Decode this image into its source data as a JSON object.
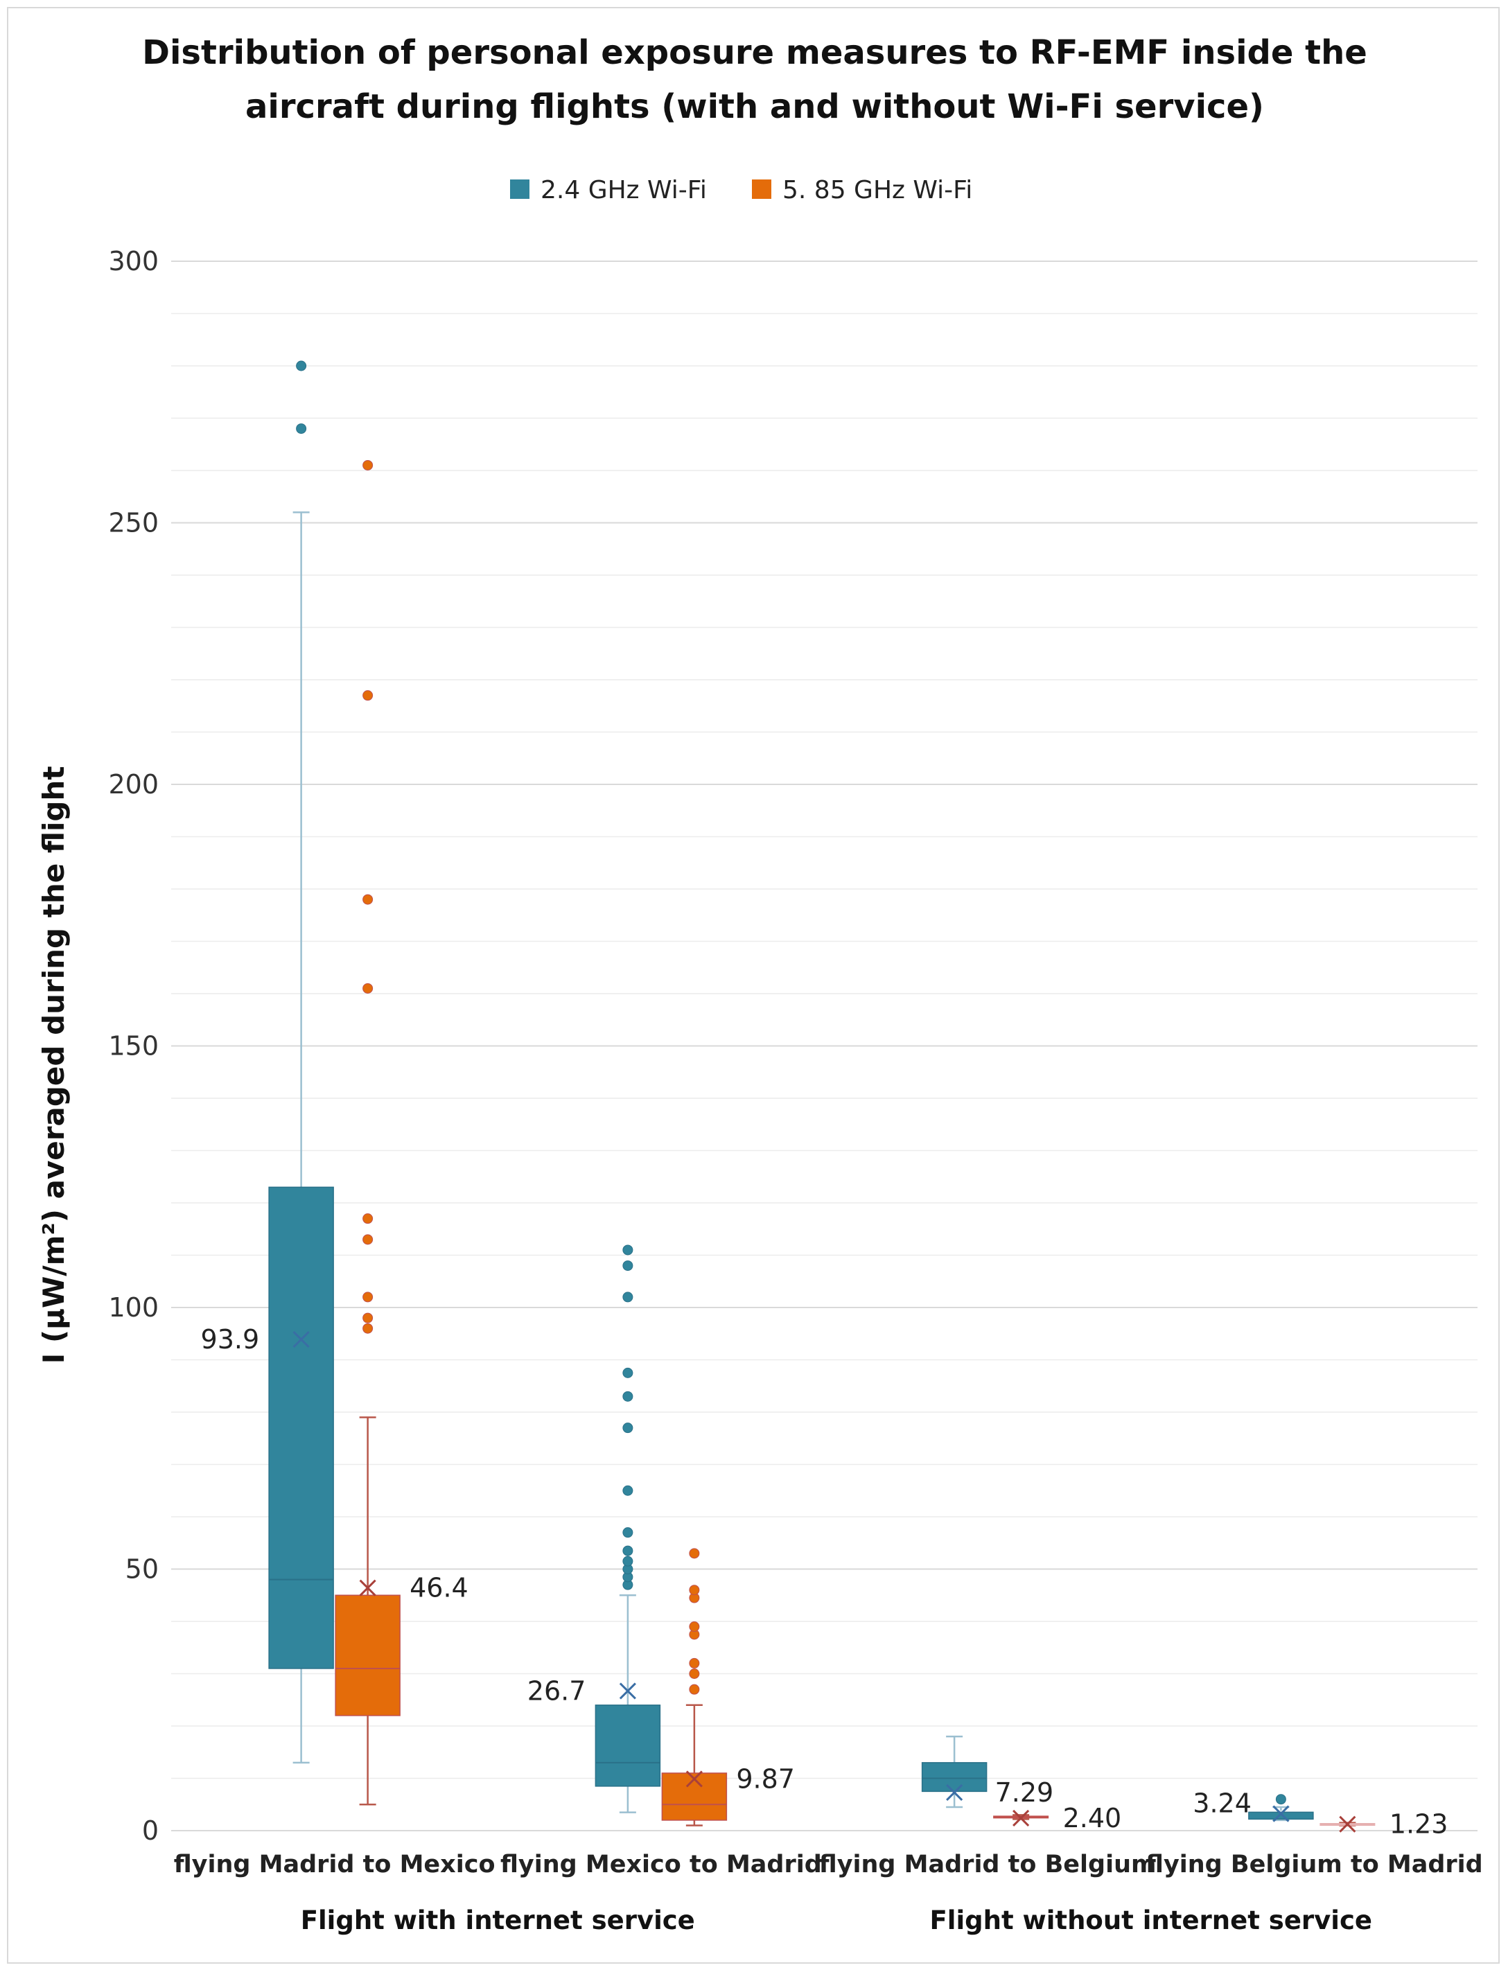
{
  "chart_data": {
    "type": "boxplot",
    "title_lines": [
      "Distribution of personal exposure measures to RF-EMF inside the",
      "aircraft during flights (with and without Wi-Fi service)"
    ],
    "ylabel": "I (µW/m²) averaged during the flight",
    "ylim": [
      0,
      300
    ],
    "yticks": [
      0,
      50,
      100,
      150,
      200,
      250,
      300
    ],
    "minor_grid_step": 10,
    "categories": [
      "flying Madrid to Mexico",
      "flying Mexico to Madrid",
      "flying Madrid to Belgium",
      "flying Belgium to Madrid"
    ],
    "groups": [
      {
        "label": "Flight with internet service",
        "categories": [
          0,
          1
        ]
      },
      {
        "label": "Flight without internet service",
        "categories": [
          2,
          3
        ]
      }
    ],
    "series": [
      {
        "name": "2.4 GHz Wi-Fi",
        "color": "#31859c",
        "boxes": [
          {
            "min": 13,
            "q1": 31,
            "median": 48,
            "q3": 123,
            "max": 252,
            "mean": 93.9,
            "mean_label": "93.9",
            "outliers": [
              268,
              280
            ]
          },
          {
            "min": 3.5,
            "q1": 8.5,
            "median": 13,
            "q3": 24,
            "max": 45,
            "mean": 26.7,
            "mean_label": "26.7",
            "outliers": [
              47,
              48.5,
              50,
              51.5,
              53.5,
              57,
              65,
              77,
              83,
              87.5,
              102,
              108,
              111
            ]
          },
          {
            "min": 4.5,
            "q1": 7.5,
            "median": 10,
            "q3": 13,
            "max": 18,
            "mean": 7.29,
            "mean_label": "7.29",
            "outliers": []
          },
          {
            "min": 2.0,
            "q1": 2.5,
            "median": 3.0,
            "q3": 3.8,
            "max": 4.5,
            "mean": 3.24,
            "mean_label": "3.24",
            "outliers": [
              6.0
            ]
          }
        ]
      },
      {
        "name": "5. 85 GHz Wi-Fi",
        "color": "#e46c0a",
        "boxes": [
          {
            "min": 5,
            "q1": 22,
            "median": 31,
            "q3": 45,
            "max": 79,
            "mean": 46.4,
            "mean_label": "46.4",
            "outliers": [
              96,
              98,
              102,
              113,
              117,
              161,
              178,
              217,
              261
            ]
          },
          {
            "min": 1,
            "q1": 2,
            "median": 5,
            "q3": 11,
            "max": 24,
            "mean": 9.87,
            "mean_label": "9.87",
            "outliers": [
              27,
              30,
              32,
              37.5,
              39,
              44.5,
              46,
              53
            ]
          },
          {
            "min": 2.2,
            "q1": 2.4,
            "median": 2.6,
            "q3": 2.8,
            "max": 3.0,
            "mean": 2.4,
            "mean_label": "2.40",
            "outliers": []
          },
          {
            "min": 1.0,
            "q1": 1.1,
            "median": 1.2,
            "q3": 1.4,
            "max": 1.5,
            "mean": 1.23,
            "mean_label": "1.23",
            "outliers": []
          }
        ]
      }
    ]
  }
}
